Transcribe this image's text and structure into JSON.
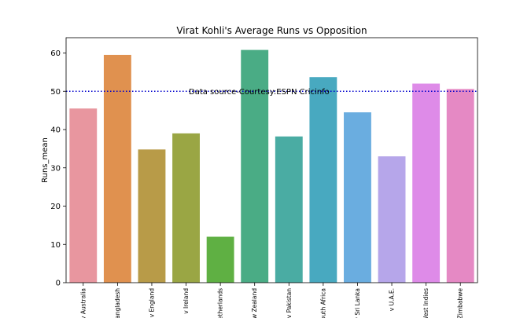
{
  "chart_data": {
    "type": "bar",
    "title": "Virat Kohli's Average Runs vs Opposition",
    "xlabel": "",
    "ylabel": "Runs_mean",
    "ylim": [
      0,
      64
    ],
    "yticks": [
      0,
      10,
      20,
      30,
      40,
      50,
      60
    ],
    "categories": [
      "v Australia",
      "v Bangladesh",
      "v England",
      "v Ireland",
      "v Netherlands",
      "v New Zealand",
      "v Pakistan",
      "v South Africa",
      "v Sri Lanka",
      "v U.A.E.",
      "v West Indies",
      "v Zimbabwe"
    ],
    "values": [
      45.5,
      59.5,
      34.8,
      39.0,
      12.0,
      60.8,
      38.2,
      53.7,
      44.5,
      33.0,
      52.0,
      50.6
    ],
    "colors": [
      "#e8969f",
      "#e0914f",
      "#b89b48",
      "#9aa644",
      "#5fb043",
      "#4aac85",
      "#4aaca3",
      "#48a9c0",
      "#6aade0",
      "#b6a6ea",
      "#de8be8",
      "#e589c4"
    ],
    "reference_line": {
      "value": 50,
      "color": "#0000cc",
      "style": "dotted"
    },
    "annotation": "Data source-Courtesy:ESPN Cricinfo",
    "grid": false,
    "legend": "none"
  }
}
